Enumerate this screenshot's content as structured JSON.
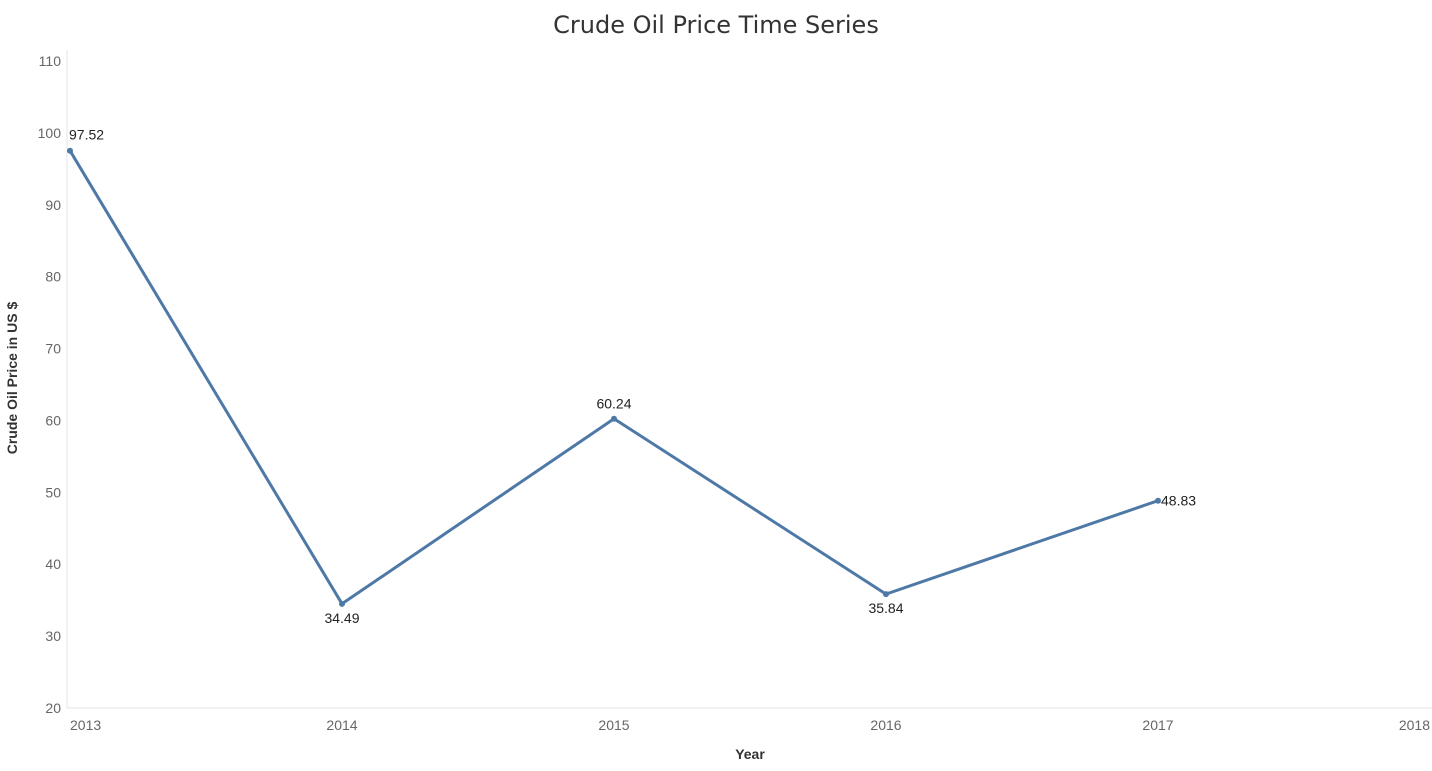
{
  "chart_data": {
    "type": "line",
    "title": "Crude Oil Price Time Series",
    "xlabel": "Year",
    "ylabel": "Crude Oil Price in US $",
    "x": [
      2013,
      2014,
      2015,
      2016,
      2017
    ],
    "x_ticks": [
      2013,
      2014,
      2015,
      2016,
      2017,
      2018
    ],
    "y_ticks": [
      20,
      30,
      40,
      50,
      60,
      70,
      80,
      90,
      100,
      110
    ],
    "xlim": [
      2013,
      2018
    ],
    "ylim": [
      20,
      110
    ],
    "series": [
      {
        "values": [
          97.52,
          34.49,
          60.24,
          35.84,
          48.83
        ],
        "labels": [
          "97.52",
          "34.49",
          "60.24",
          "35.84",
          "48.83"
        ]
      }
    ],
    "grid": false,
    "colors": {
      "line": "#4e79a7",
      "axis": "#e6e6e6"
    }
  }
}
